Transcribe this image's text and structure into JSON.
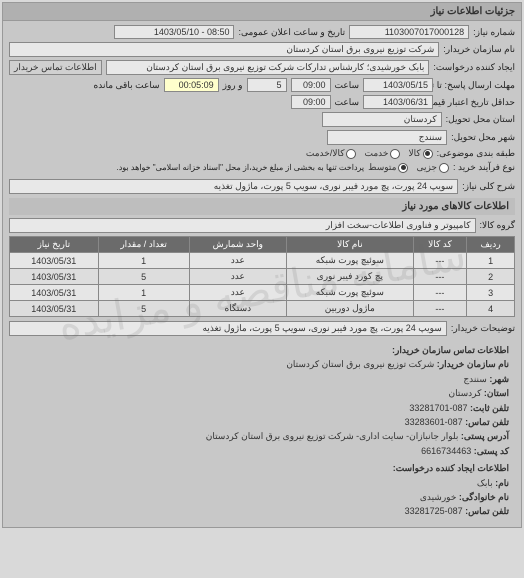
{
  "header": {
    "title": "جزئیات اطلاعات نیاز"
  },
  "fields": {
    "requestNo_label": "شماره نیاز:",
    "requestNo": "1103007017000128",
    "announceDate_label": "تاریخ و ساعت اعلان عمومی:",
    "announceDate": "08:50 - 1403/05/10",
    "buyerName_label": "نام سازمان خریدار:",
    "buyerName": "شرکت توزیع نیروی برق استان کردستان",
    "creator_label": "ایجاد کننده درخواست:",
    "creator": "بابک خورشیدی؛ کارشناس تدارکات شرکت توزیع نیروی برق استان کردستان",
    "contactLink": "اطلاعات تماس خریدار",
    "sendDeadline_label": "مهلت ارسال پاسخ: تا تاریخ:",
    "sendDate": "1403/05/15",
    "time_label": "ساعت",
    "sendTime": "09:00",
    "day_label": "و روز",
    "days": "5",
    "remain_label": "ساعت باقی مانده",
    "remain": "00:05:09",
    "validUntil_label": "حداقل تاریخ اعتبار قیمت: تا تاریخ:",
    "validDate": "1403/06/31",
    "validTime": "09:00",
    "province_label": "استان محل تحویل:",
    "province": "کردستان",
    "city_label": "شهر محل تحویل:",
    "city": "سنندج",
    "budgetType_label": "طبقه بندی موضوعی:",
    "budget_options": [
      "کالا",
      "خدمت",
      "کالا/خدمت"
    ],
    "budget_sel": 0,
    "processType_label": "نوع فرآیند خرید :",
    "process_options": [
      "جزیی",
      "متوسط"
    ],
    "process_sel": 1,
    "processNote": "پرداخت تنها به بخشی از مبلغ خرید،از محل \"اسناد خزانه اسلامی\" خواهد بود.",
    "desc_label": "شرح کلی نیاز:",
    "desc": "سویپ 24 پورت، پچ مورد فیبر نوری، سویپ 5 پورت، ماژول تغذیه",
    "goodsInfo_title": "اطلاعات کالاهای مورد نیاز",
    "goodsGroup_label": "گروه کالا:",
    "goodsGroup": "کامپیوتر و فناوری اطلاعات-سخت افزار",
    "buyerNote_label": "توضیحات خریدار:",
    "buyerNote": "سویپ 24 پورت، پچ مورد فیبر نوری، سویپ 5 پورت، ماژول تغذیه"
  },
  "table": {
    "columns": [
      "ردیف",
      "کد کالا",
      "نام کالا",
      "واحد شمارش",
      "تعداد / مقدار",
      "تاریخ نیاز"
    ],
    "rows": [
      [
        "1",
        "---",
        "سوئیچ پورت شبکه",
        "عدد",
        "1",
        "1403/05/31"
      ],
      [
        "2",
        "---",
        "پچ کورد فیبر نوری",
        "عدد",
        "5",
        "1403/05/31"
      ],
      [
        "3",
        "---",
        "سوئیچ پورت شبکه",
        "عدد",
        "1",
        "1403/05/31"
      ],
      [
        "4",
        "---",
        "ماژول دوربین",
        "دستگاه",
        "5",
        "1403/05/31"
      ]
    ]
  },
  "contact": {
    "section1_title": "اطلاعات تماس سازمان خریدار:",
    "org_label": "نام سازمان خریدار:",
    "org": "شرکت توزیع نیروی برق استان کردستان",
    "city_label": "شهر:",
    "city": "سنندج",
    "province_label": "استان:",
    "province": "کردستان",
    "phone_label": "تلفن ثابت:",
    "phone": "087-33281701",
    "fax_label": "تلفن تماس:",
    "fax": "087-33283601",
    "address_label": "آدرس پستی:",
    "address": "بلوار جانبازان- سایت اداری- شرکت توزیع نیروی برق استان کردستان",
    "post_label": "کد پستی:",
    "post": "6616734463",
    "section2_title": "اطلاعات ایجاد کننده درخواست:",
    "name_label": "نام:",
    "name": "بابک",
    "family_label": "نام خانوادگی:",
    "family": "خورشیدی",
    "cphone_label": "تلفن تماس:",
    "cphone": "087-33281725"
  },
  "watermark": "سامانه مناقصه و مزایده"
}
